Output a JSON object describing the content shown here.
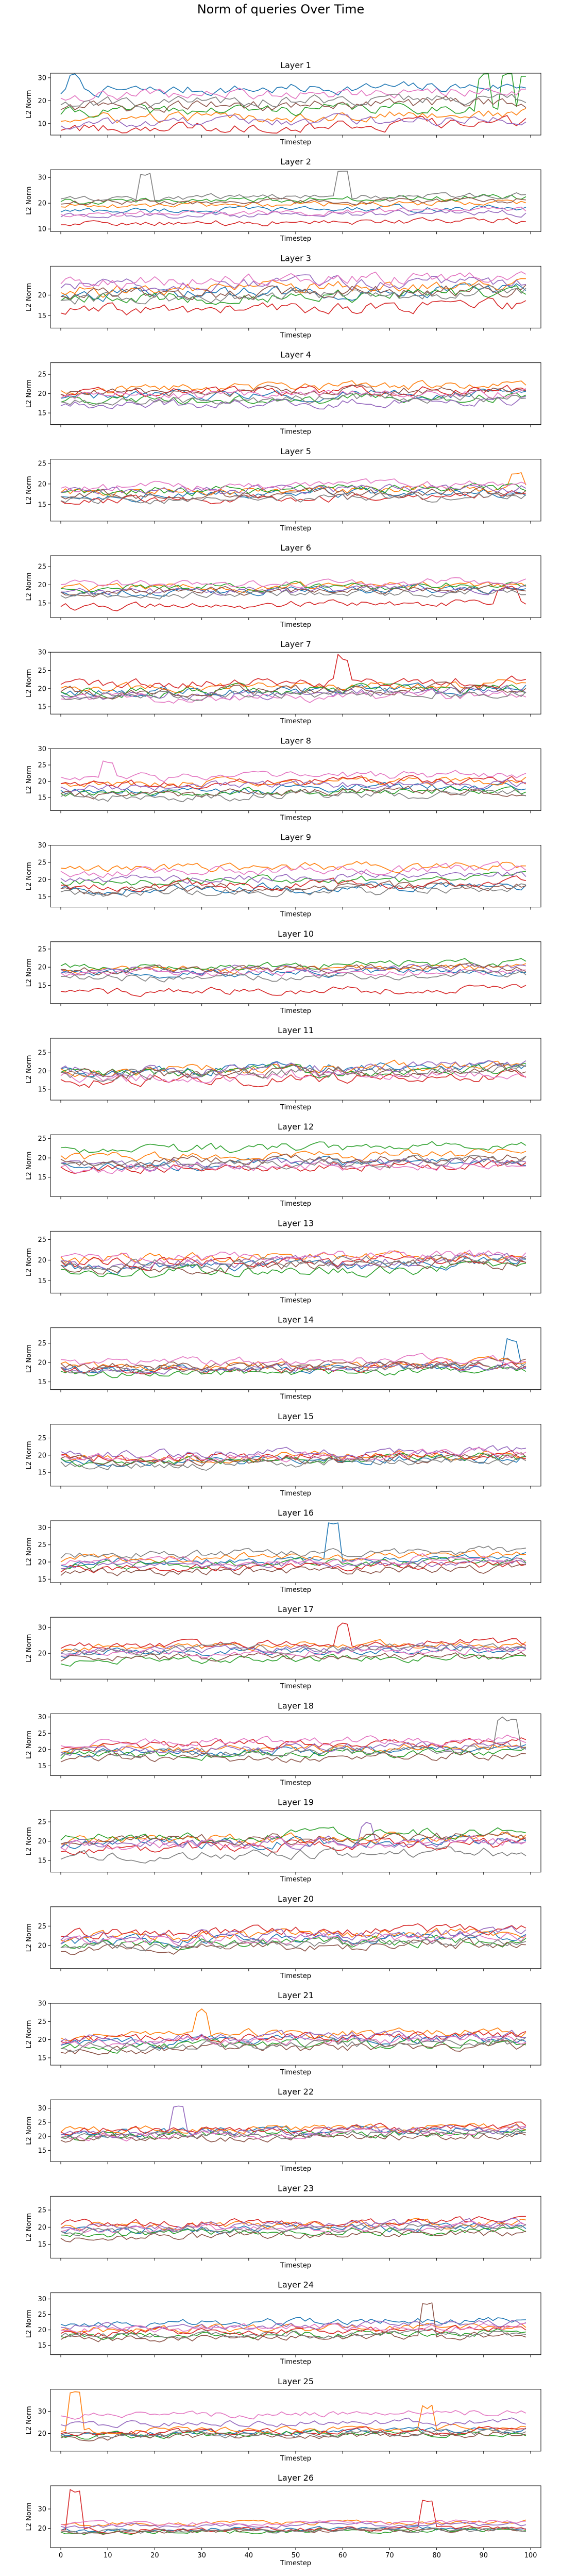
{
  "figure": {
    "title": "Norm of queries Over Time"
  },
  "chart_data": {
    "type": "line",
    "xlabel": "Timestep",
    "ylabel": "L2 Norm",
    "xlim": [
      0,
      100
    ],
    "x_ticks": [
      0,
      10,
      20,
      30,
      40,
      50,
      60,
      70,
      80,
      90,
      100
    ],
    "x_tick_labels_on_last_panel_only": true,
    "series_colors": [
      "#1f77b4",
      "#ff7f0e",
      "#2ca02c",
      "#d62728",
      "#9467bd",
      "#8c564b",
      "#e377c2",
      "#7f7f7f"
    ],
    "panels": [
      {
        "title": "Layer 1",
        "ylim": [
          5,
          32
        ],
        "yticks": [
          10,
          20,
          30
        ],
        "base": [
          24,
          12,
          15,
          8,
          10,
          17,
          22,
          19
        ],
        "amp": 4.0,
        "spikes": [
          [
            90,
            2,
            14,
            2
          ],
          [
            95,
            2,
            14,
            2
          ],
          [
            99,
            2,
            14,
            2
          ],
          [
            3,
            0,
            6,
            3
          ]
        ]
      },
      {
        "title": "Layer 2",
        "ylim": [
          9,
          33
        ],
        "yticks": [
          10,
          20,
          30
        ],
        "base": [
          17,
          19,
          21,
          12,
          15,
          20,
          16,
          22
        ],
        "amp": 2.0,
        "spikes": [
          [
            18,
            7,
            10,
            2
          ],
          [
            60,
            7,
            10,
            2
          ]
        ]
      },
      {
        "title": "Layer 3",
        "ylim": [
          12,
          27
        ],
        "yticks": [
          15,
          20
        ],
        "base": [
          20,
          21,
          19,
          16,
          22,
          20,
          23,
          19
        ],
        "amp": 2.5,
        "spikes": []
      },
      {
        "title": "Layer 4",
        "ylim": [
          12,
          28
        ],
        "yticks": [
          15,
          20,
          25
        ],
        "base": [
          19,
          21,
          18,
          20,
          17,
          20,
          19,
          18
        ],
        "amp": 2.0,
        "spikes": []
      },
      {
        "title": "Layer 5",
        "ylim": [
          11,
          26
        ],
        "yticks": [
          15,
          20,
          25
        ],
        "base": [
          17,
          18,
          18,
          16,
          18,
          17,
          19,
          16
        ],
        "amp": 1.8,
        "spikes": [
          [
            97,
            1,
            3,
            3
          ]
        ]
      },
      {
        "title": "Layer 6",
        "ylim": [
          11,
          28
        ],
        "yticks": [
          15,
          20,
          25
        ],
        "base": [
          18,
          19,
          19,
          14,
          18,
          18,
          20,
          17
        ],
        "amp": 1.8,
        "spikes": [
          [
            95,
            3,
            3,
            4
          ]
        ]
      },
      {
        "title": "Layer 7",
        "ylim": [
          13,
          30
        ],
        "yticks": [
          15,
          20,
          25,
          30
        ],
        "base": [
          19,
          20,
          19,
          21,
          18,
          19,
          17,
          18
        ],
        "amp": 2.2,
        "spikes": [
          [
            60,
            3,
            6,
            3
          ]
        ]
      },
      {
        "title": "Layer 8",
        "ylim": [
          11,
          30
        ],
        "yticks": [
          15,
          20,
          25,
          30
        ],
        "base": [
          17,
          19,
          16,
          19,
          18,
          16,
          21,
          15
        ],
        "amp": 2.2,
        "spikes": [
          [
            10,
            6,
            5,
            3
          ]
        ]
      },
      {
        "title": "Layer 9",
        "ylim": [
          12,
          30
        ],
        "yticks": [
          15,
          20,
          25,
          30
        ],
        "base": [
          17,
          23,
          19,
          18,
          20,
          17,
          22,
          16
        ],
        "amp": 2.2,
        "spikes": []
      },
      {
        "title": "Layer 10",
        "ylim": [
          10,
          27
        ],
        "yticks": [
          15,
          20,
          25
        ],
        "base": [
          18,
          19,
          20,
          13,
          19,
          19,
          18,
          17
        ],
        "amp": 1.8,
        "spikes": []
      },
      {
        "title": "Layer 11",
        "ylim": [
          12,
          29
        ],
        "yticks": [
          15,
          20,
          25
        ],
        "base": [
          20,
          20,
          19,
          17,
          20,
          19,
          18,
          19
        ],
        "amp": 2.5,
        "spikes": []
      },
      {
        "title": "Layer 12",
        "ylim": [
          10,
          26
        ],
        "yticks": [
          15,
          20,
          25
        ],
        "base": [
          18,
          20,
          22,
          17,
          18,
          19,
          17,
          18
        ],
        "amp": 2.0,
        "spikes": []
      },
      {
        "title": "Layer 13",
        "ylim": [
          12,
          27
        ],
        "yticks": [
          15,
          20,
          25
        ],
        "base": [
          18,
          20,
          17,
          19,
          19,
          18,
          20,
          19
        ],
        "amp": 2.2,
        "spikes": []
      },
      {
        "title": "Layer 14",
        "ylim": [
          13,
          29
        ],
        "yticks": [
          15,
          20,
          25
        ],
        "base": [
          18,
          19,
          17,
          18,
          18,
          19,
          20,
          18
        ],
        "amp": 1.8,
        "spikes": [
          [
            96,
            0,
            7,
            3
          ]
        ]
      },
      {
        "title": "Layer 15",
        "ylim": [
          11,
          29
        ],
        "yticks": [
          15,
          20,
          25
        ],
        "base": [
          18,
          19,
          18,
          19,
          20,
          18,
          19,
          17
        ],
        "amp": 2.2,
        "spikes": []
      },
      {
        "title": "Layer 16",
        "ylim": [
          14,
          32
        ],
        "yticks": [
          15,
          20,
          25,
          30
        ],
        "base": [
          20,
          21,
          19,
          18,
          19,
          17,
          20,
          22
        ],
        "amp": 2.0,
        "spikes": [
          [
            58,
            0,
            10,
            3
          ]
        ]
      },
      {
        "title": "Layer 17",
        "ylim": [
          10,
          34
        ],
        "yticks": [
          20,
          30
        ],
        "base": [
          20,
          22,
          17,
          23,
          21,
          18,
          20,
          21
        ],
        "amp": 2.5,
        "spikes": [
          [
            60,
            3,
            8,
            3
          ]
        ]
      },
      {
        "title": "Layer 18",
        "ylim": [
          12,
          31
        ],
        "yticks": [
          15,
          20,
          25,
          30
        ],
        "base": [
          19,
          20,
          18,
          21,
          20,
          17,
          22,
          19
        ],
        "amp": 2.2,
        "spikes": [
          [
            95,
            7,
            9,
            4
          ]
        ]
      },
      {
        "title": "Layer 19",
        "ylim": [
          12,
          28
        ],
        "yticks": [
          15,
          20,
          25
        ],
        "base": [
          19,
          20,
          21,
          18,
          19,
          20,
          19,
          16
        ],
        "amp": 2.2,
        "spikes": [
          [
            65,
            4,
            5,
            3
          ]
        ]
      },
      {
        "title": "Layer 20",
        "ylim": [
          14,
          30
        ],
        "yticks": [
          20,
          25
        ],
        "base": [
          21,
          22,
          20,
          23,
          22,
          19,
          21,
          20
        ],
        "amp": 2.2,
        "spikes": []
      },
      {
        "title": "Layer 21",
        "ylim": [
          13,
          30
        ],
        "yticks": [
          15,
          20,
          25,
          30
        ],
        "base": [
          19,
          21,
          18,
          20,
          20,
          17,
          19,
          18
        ],
        "amp": 2.2,
        "spikes": [
          [
            30,
            1,
            6,
            3
          ]
        ]
      },
      {
        "title": "Layer 22",
        "ylim": [
          11,
          33
        ],
        "yticks": [
          15,
          20,
          25,
          30
        ],
        "base": [
          21,
          22,
          20,
          22,
          21,
          19,
          20,
          20
        ],
        "amp": 2.5,
        "spikes": [
          [
            25,
            4,
            8,
            3
          ]
        ]
      },
      {
        "title": "Layer 23",
        "ylim": [
          11,
          29
        ],
        "yticks": [
          15,
          20,
          25
        ],
        "base": [
          19,
          20,
          18,
          21,
          20,
          17,
          19,
          19
        ],
        "amp": 2.0,
        "spikes": []
      },
      {
        "title": "Layer 24",
        "ylim": [
          12,
          32
        ],
        "yticks": [
          15,
          20,
          25,
          30
        ],
        "base": [
          22,
          20,
          18,
          19,
          21,
          17,
          20,
          18
        ],
        "amp": 2.0,
        "spikes": [
          [
            78,
            5,
            10,
            2
          ]
        ]
      },
      {
        "title": "Layer 25",
        "ylim": [
          12,
          40
        ],
        "yticks": [
          20,
          30
        ],
        "base": [
          20,
          21,
          19,
          20,
          24,
          18,
          28,
          19
        ],
        "amp": 2.5,
        "spikes": [
          [
            3,
            1,
            16,
            2
          ],
          [
            78,
            1,
            10,
            2
          ]
        ]
      },
      {
        "title": "Layer 26",
        "ylim": [
          10,
          42
        ],
        "yticks": [
          20,
          30
        ],
        "base": [
          19,
          22,
          18,
          19,
          21,
          18,
          22,
          18
        ],
        "amp": 2.0,
        "spikes": [
          [
            3,
            3,
            20,
            2
          ],
          [
            78,
            3,
            14,
            2
          ]
        ]
      }
    ]
  }
}
